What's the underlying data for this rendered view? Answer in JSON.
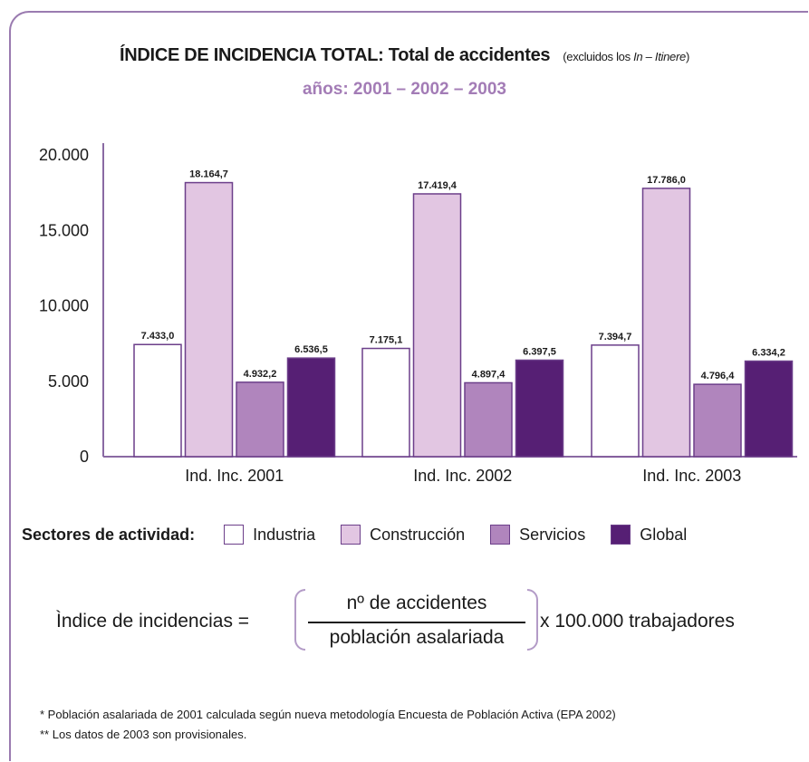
{
  "title": {
    "main": "ÍNDICE DE INCIDENCIA TOTAL: Total de accidentes",
    "note_prefix": "(excluidos los ",
    "note_italic": "In – Itinere",
    "note_suffix": ")",
    "subtitle": "años: 2001 – 2002 – 2003"
  },
  "chart_data": {
    "type": "bar",
    "categories": [
      "Ind. Inc. 2001",
      "Ind. Inc. 2002",
      "Ind. Inc. 2003"
    ],
    "series": [
      {
        "name": "Industria",
        "color": "#ffffff",
        "values": [
          7433.0,
          7175.1,
          7394.7
        ],
        "labels": [
          "7.433,0",
          "7.175,1",
          "7.394,7"
        ]
      },
      {
        "name": "Construcción",
        "color": "#e2c6e2",
        "values": [
          18164.7,
          17419.4,
          17786.0
        ],
        "labels": [
          "18.164,7",
          "17.419,4",
          "17.786,0"
        ]
      },
      {
        "name": "Servicios",
        "color": "#b085bd",
        "values": [
          4932.2,
          4897.4,
          4796.4
        ],
        "labels": [
          "4.932,2",
          "4.897,4",
          "4.796,4"
        ]
      },
      {
        "name": "Global",
        "color": "#561f74",
        "values": [
          6536.5,
          6397.5,
          6334.2
        ],
        "labels": [
          "6.536,5",
          "6.397,5",
          "6.334,2"
        ]
      }
    ],
    "ylim": [
      0,
      20000
    ],
    "yticks": [
      0,
      5000,
      10000,
      15000,
      20000
    ],
    "ytick_labels": [
      "0",
      "5.000",
      "10.000",
      "15.000",
      "20.000"
    ],
    "grid": false,
    "legend_position": "bottom",
    "bar_edge_color": "#6c3f8a"
  },
  "legend": {
    "title": "Sectores de actividad:",
    "items": [
      "Industria",
      "Construcción",
      "Servicios",
      "Global"
    ]
  },
  "formula": {
    "lhs": "Ìndice de incidencias =",
    "numerator": "nº de accidentes",
    "denominator": "población asalariada",
    "rhs": "x 100.000 trabajadores"
  },
  "footnotes": [
    "*  Población asalariada de 2001 calculada según nueva metodología Encuesta de Población Activa (EPA 2002)",
    "** Los datos de 2003 son provisionales."
  ]
}
